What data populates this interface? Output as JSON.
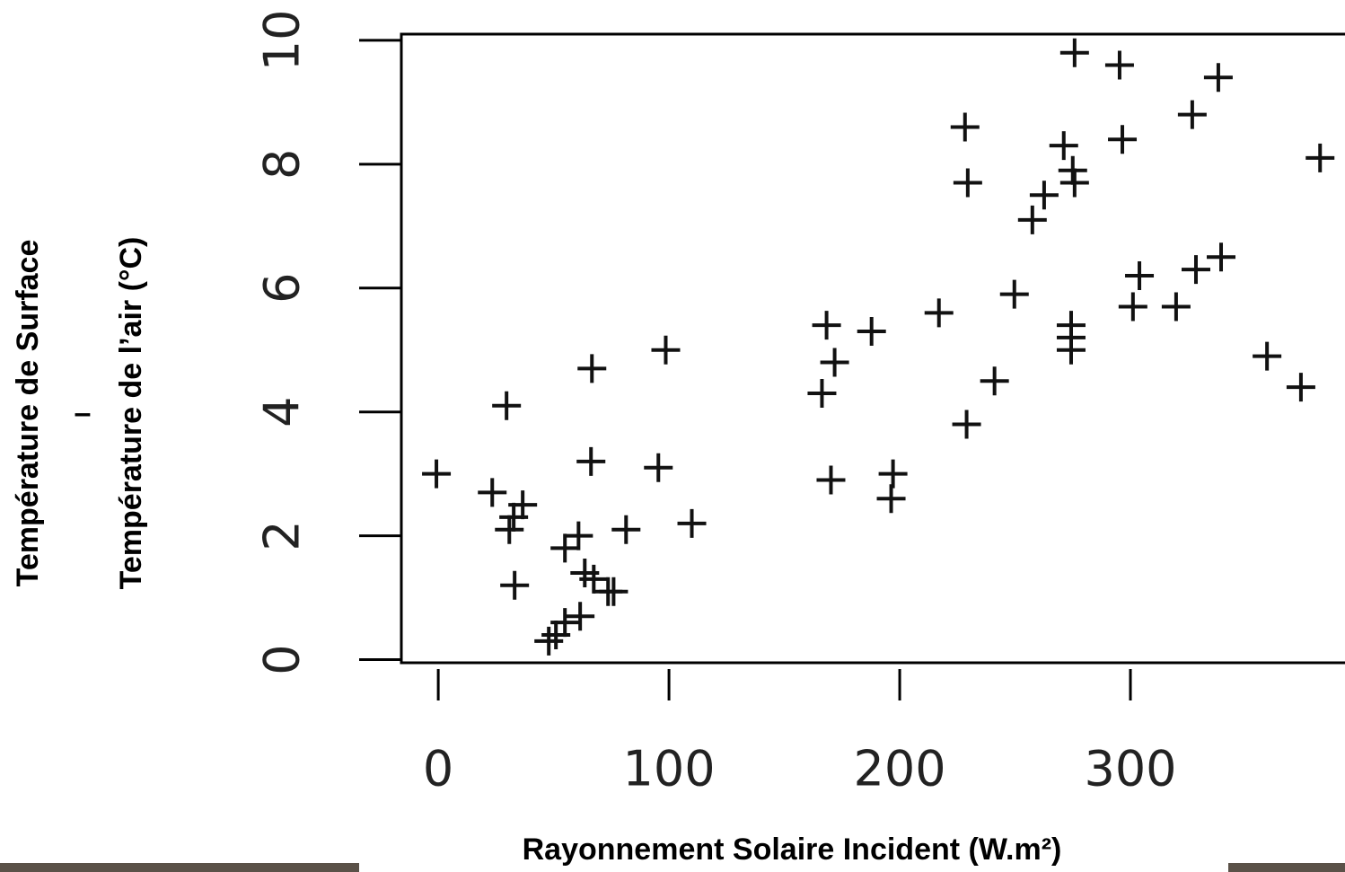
{
  "chart_data": {
    "type": "scatter",
    "xlabel": "Rayonnement Solaire Incident (W.m²)",
    "ylabel": [
      "Température de Surface",
      "–",
      "Température de l’air (°C)"
    ],
    "xlim": [
      -16,
      393
    ],
    "ylim": [
      -0.05,
      10.1
    ],
    "xticks": [
      0,
      100,
      200,
      300
    ],
    "yticks": [
      0,
      2,
      4,
      6,
      8,
      10
    ],
    "color": "#111111",
    "series": [
      {
        "x": [
          -0.8,
          29.6,
          23.4,
          36.6,
          32.7,
          30.8,
          33.1,
          66.6,
          98.6,
          66.2,
          95.4,
          109.9,
          81.4,
          60.8,
          54.9,
          63.5,
          67.4,
          73.6,
          76.0,
          61.5,
          54.9,
          51.0,
          47.9,
          168.3,
          171.8,
          166.3,
          170.2,
          187.8,
          197.1,
          196.3,
          217.0,
          228.3,
          229.5,
          229.0,
          241.1,
          249.7,
          257.5,
          262.6,
          271.1,
          275.0,
          275.8,
          274.3,
          274.3,
          274.3,
          275.8,
          295.3,
          296.5,
          301.1,
          303.9,
          319.8,
          328.4,
          339.3,
          338.1,
          326.8,
          359.2,
          373.9,
          382.2
        ],
        "values": [
          3.0,
          4.1,
          2.7,
          2.5,
          2.3,
          2.1,
          1.2,
          4.7,
          5.0,
          3.2,
          3.1,
          2.2,
          2.1,
          2.0,
          1.8,
          1.4,
          1.3,
          1.1,
          1.1,
          0.7,
          0.6,
          0.4,
          0.3,
          5.4,
          4.8,
          4.3,
          2.9,
          5.3,
          3.0,
          2.6,
          5.6,
          8.6,
          7.7,
          3.8,
          4.5,
          5.9,
          7.1,
          7.5,
          8.3,
          7.9,
          7.7,
          5.4,
          5.2,
          5.0,
          9.8,
          9.6,
          8.4,
          5.7,
          6.2,
          5.7,
          6.3,
          6.5,
          9.4,
          8.8,
          4.9,
          4.4,
          8.1
        ]
      }
    ]
  }
}
